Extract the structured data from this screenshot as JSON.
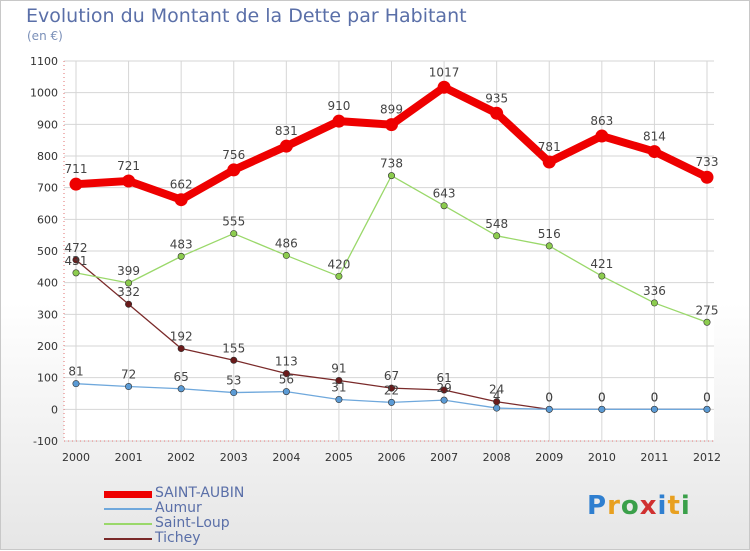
{
  "title": "Evolution du Montant de la Dette par Habitant",
  "subtitle": "(en €)",
  "logo": "Proxiti",
  "chart_data": {
    "type": "line",
    "categories": [
      "2000",
      "2001",
      "2002",
      "2003",
      "2004",
      "2005",
      "2006",
      "2007",
      "2008",
      "2009",
      "2010",
      "2011",
      "2012"
    ],
    "ylim": [
      -100,
      1100
    ],
    "yticks": [
      -100,
      0,
      100,
      200,
      300,
      400,
      500,
      600,
      700,
      800,
      900,
      1000,
      1100
    ],
    "grid": true,
    "legend_position": "bottom-left",
    "series": [
      {
        "name": "SAINT-AUBIN",
        "color": "#ee0000",
        "values": [
          711,
          721,
          662,
          756,
          831,
          910,
          899,
          1017,
          935,
          781,
          863,
          814,
          733
        ]
      },
      {
        "name": "Aumur",
        "color": "#6fa8dc",
        "values": [
          81,
          72,
          65,
          53,
          56,
          31,
          22,
          29,
          4,
          0,
          0,
          0,
          0
        ]
      },
      {
        "name": "Saint-Loup",
        "color": "#9ad86a",
        "values": [
          431,
          399,
          483,
          555,
          486,
          420,
          738,
          643,
          548,
          516,
          421,
          336,
          275
        ]
      },
      {
        "name": "Tichey",
        "color": "#7a2a2a",
        "values": [
          472,
          332,
          192,
          155,
          113,
          91,
          67,
          61,
          24,
          0,
          0,
          0,
          0
        ]
      }
    ]
  }
}
